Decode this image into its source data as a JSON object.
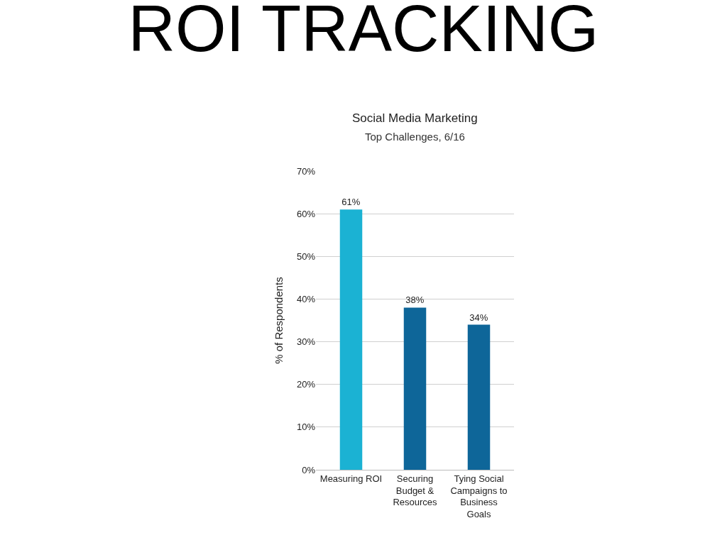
{
  "chart_data": {
    "type": "bar",
    "title": "ROI TRACKING",
    "subtitle": "Social Media Marketing",
    "annotations": [
      "Top Challenges, 6/16"
    ],
    "ylabel": "% of Respondents",
    "categories": [
      "Measuring ROI",
      "Securing Budget & Resources",
      "Tying Social Campaigns to Business Goals"
    ],
    "values": [
      61,
      38,
      34
    ],
    "colors": [
      "#1bb2d3",
      "#0e6699",
      "#0e6699"
    ],
    "value_labels": [
      "61%",
      "38%",
      "34%"
    ],
    "ylim": [
      0,
      70
    ],
    "yticks": [
      {
        "value": 0,
        "label": "0%"
      },
      {
        "value": 10,
        "label": "10%"
      },
      {
        "value": 20,
        "label": "20%"
      },
      {
        "value": 30,
        "label": "30%"
      },
      {
        "value": 40,
        "label": "40%"
      },
      {
        "value": 50,
        "label": "50%"
      },
      {
        "value": 60,
        "label": "60%"
      },
      {
        "value": 70,
        "label": "70%"
      }
    ],
    "grid": "y"
  }
}
